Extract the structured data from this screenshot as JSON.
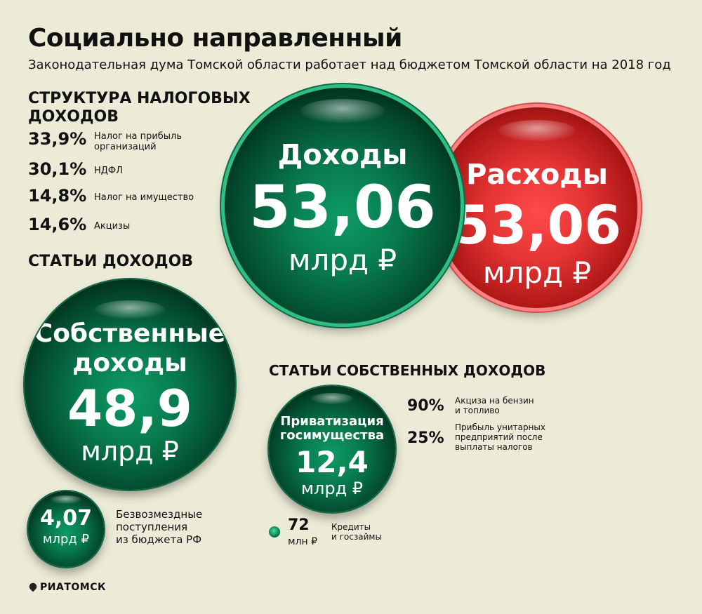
{
  "header": {
    "title": "Социально направленный",
    "subtitle": "Законодательная дума Томской области работает над бюджетом Томской области на 2018 год"
  },
  "tax_structure": {
    "heading_line1": "СТРУКТУРА НАЛОГОВЫХ",
    "heading_line2": "ДОХОДОВ",
    "items": [
      {
        "pct": "33,9%",
        "label_line1": "Налог на прибыль",
        "label_line2": "организаций"
      },
      {
        "pct": "30,1%",
        "label_line1": "НДФЛ",
        "label_line2": ""
      },
      {
        "pct": "14,8%",
        "label_line1": "Налог на имущество",
        "label_line2": ""
      },
      {
        "pct": "14,6%",
        "label_line1": "Акцизы",
        "label_line2": ""
      }
    ]
  },
  "revenue_items_heading": "СТАТЬИ ДОХОДОВ",
  "income_bubble": {
    "label": "Доходы",
    "value": "53,06",
    "unit": "млрд ₽",
    "color": "#0a7a4e"
  },
  "expense_bubble": {
    "label": "Расходы",
    "value": "53,06",
    "unit": "млрд ₽",
    "color": "#d82a2a"
  },
  "own_income_bubble": {
    "label_line1": "Собственные",
    "label_line2": "доходы",
    "value": "48,9",
    "unit": "млрд ₽"
  },
  "grants_bubble": {
    "value": "4,07",
    "unit": "млрд ₽",
    "label_line1": "Безвозмездные",
    "label_line2": "поступления",
    "label_line3": "из бюджета РФ"
  },
  "own_items": {
    "heading": "СТАТЬИ СОБСТВЕННЫХ ДОХОДОВ",
    "privatization": {
      "label_line1": "Приватизация",
      "label_line2": "госимущества",
      "value": "12,4",
      "unit": "млрд ₽"
    },
    "items": [
      {
        "pct": "90%",
        "label_line1": "Акциза на бензин",
        "label_line2": "и топливо",
        "label_line3": ""
      },
      {
        "pct": "25%",
        "label_line1": "Прибыль унитарных",
        "label_line2": "предприятий после",
        "label_line3": "выплаты налогов"
      }
    ],
    "loans": {
      "value": "72",
      "unit": "млн ₽",
      "label_line1": "Кредиты",
      "label_line2": "и госзаймы"
    }
  },
  "footer": {
    "logo": "РИАТОМСК"
  }
}
